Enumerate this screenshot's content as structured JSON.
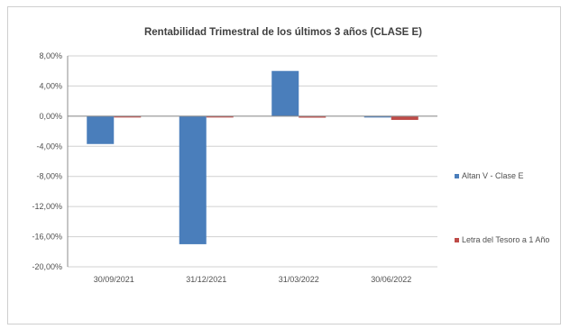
{
  "chart_data": {
    "type": "bar",
    "title": "Rentabilidad Trimestral de los últimos 3 años (CLASE E)",
    "xlabel": "",
    "ylabel": "",
    "categories": [
      "30/09/2021",
      "31/12/2021",
      "31/03/2022",
      "30/06/2022"
    ],
    "series": [
      {
        "name": "Altan V - Clase E",
        "color": "#4a7ebb",
        "values": [
          -3.7,
          -17.0,
          6.0,
          -0.1
        ]
      },
      {
        "name": "Letra del Tesoro a 1 Año",
        "color": "#be4b48",
        "values": [
          -0.1,
          -0.1,
          -0.2,
          -0.5
        ]
      }
    ],
    "yticks": [
      "8,00%",
      "4,00%",
      "0,00%",
      "-4,00%",
      "-8,00%",
      "-12,00%",
      "-16,00%",
      "-20,00%"
    ],
    "ylim": [
      -20,
      8
    ],
    "grid": true,
    "legend_position": "right"
  }
}
